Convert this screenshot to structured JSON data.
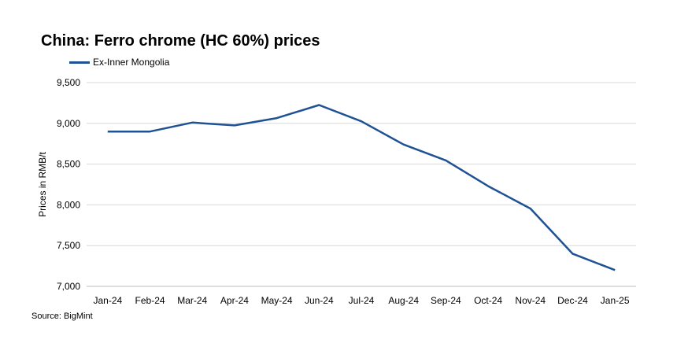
{
  "chart_data": {
    "type": "line",
    "title": "China: Ferro chrome (HC 60%) prices",
    "ylabel": "Prices in RMB/t",
    "xlabel": "",
    "categories": [
      "Jan-24",
      "Feb-24",
      "Mar-24",
      "Apr-24",
      "May-24",
      "Jun-24",
      "Jul-24",
      "Aug-24",
      "Sep-24",
      "Oct-24",
      "Nov-24",
      "Dec-24",
      "Jan-25"
    ],
    "series": [
      {
        "name": "Ex-Inner Mongolia",
        "values": [
          8900,
          8900,
          9010,
          8975,
          9065,
          9225,
          9025,
          8740,
          8545,
          8230,
          7955,
          7400,
          7200
        ]
      }
    ],
    "ylim": [
      7000,
      9500
    ],
    "yticks": [
      7000,
      7500,
      8000,
      8500,
      9000,
      9500
    ],
    "ytick_labels": [
      "7,000",
      "7,500",
      "8,000",
      "8,500",
      "9,000",
      "9,500"
    ],
    "grid": true,
    "legend_position": "top-left",
    "line_color": "#1f5294",
    "source": "Source: BigMint"
  }
}
